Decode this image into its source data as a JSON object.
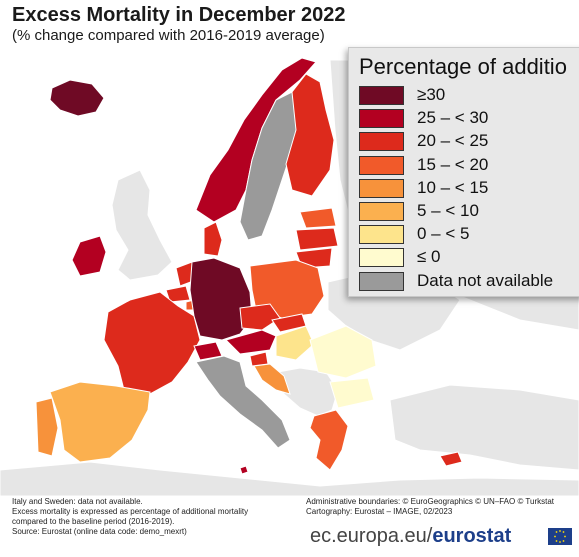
{
  "header": {
    "title": "Excess Mortality in December 2022",
    "subtitle": "(% change compared with 2016-2019 average)"
  },
  "legend": {
    "title": "Percentage of additio",
    "items": [
      {
        "label": "≥30",
        "color": "#6f0a25"
      },
      {
        "label": "25 – < 30",
        "color": "#b30021"
      },
      {
        "label": "20 – < 25",
        "color": "#dd2a1c"
      },
      {
        "label": "15 – < 20",
        "color": "#f15a2a"
      },
      {
        "label": "10 – < 15",
        "color": "#f7923b"
      },
      {
        "label": "5 – < 10",
        "color": "#fbb04f"
      },
      {
        "label": "0 – < 5",
        "color": "#fde48c"
      },
      {
        "label": "≤ 0",
        "color": "#fffbcf"
      },
      {
        "label": "Data not available",
        "color": "#9a9a9a"
      }
    ]
  },
  "map": {
    "sea_color": "#ffffff",
    "other_land_color": "#e6e6e6",
    "border_color": "#ffffff"
  },
  "footer": {
    "notes": [
      "Italy and Sweden: data not available.",
      "Excess mortality is expressed as percentage of additional mortality",
      "compared to the baseline period (2016-2019).",
      "Source: Eurostat (online data code: demo_mexrt)"
    ],
    "credits": [
      "Administrative boundaries: © EuroGeographics © UN–FAO © Turkstat",
      "Cartography: Eurostat – IMAGE, 02/2023"
    ],
    "brand_prefix": "ec.europa.eu/",
    "brand_name": "eurostat"
  }
}
